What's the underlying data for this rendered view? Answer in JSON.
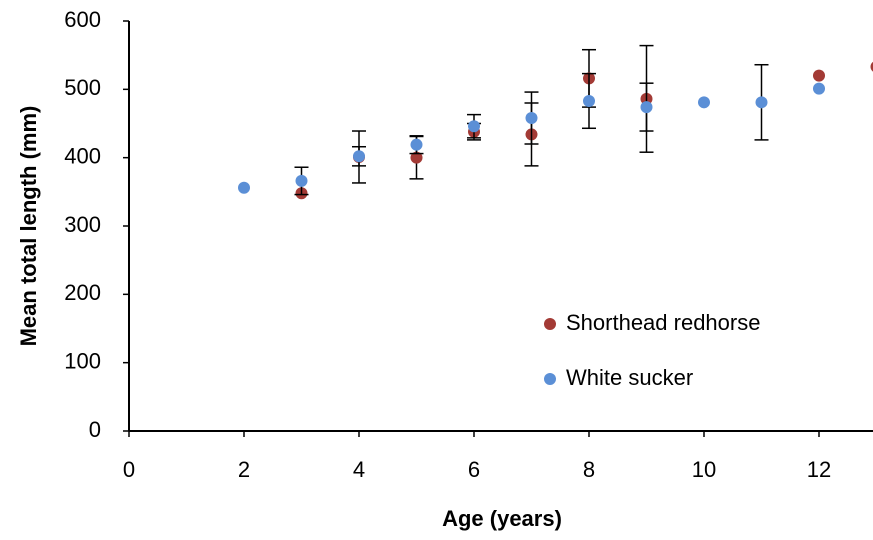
{
  "chart_data": {
    "type": "scatter",
    "x_label": "Age (years)",
    "y_label": "Mean total length (mm)",
    "xlim": [
      0,
      13
    ],
    "xticks": [
      0,
      2,
      4,
      6,
      8,
      10,
      12
    ],
    "ylim": [
      0,
      600
    ],
    "yticks": [
      0,
      100,
      200,
      300,
      400,
      500,
      600
    ],
    "grid": false,
    "legend": "right",
    "series": [
      {
        "name": "Shorthead redhorse",
        "color": "#a33a35",
        "x": [
          3,
          4,
          5,
          6,
          7,
          8,
          9,
          12,
          13
        ],
        "values": [
          348,
          401,
          400,
          438,
          434,
          516,
          486,
          520,
          533
        ],
        "errors": [
          null,
          38,
          31,
          12,
          46,
          42,
          78,
          null,
          null
        ]
      },
      {
        "name": "White sucker",
        "color": "#5b8fd6",
        "x": [
          2,
          3,
          4,
          5,
          6,
          7,
          8,
          9,
          10,
          11,
          12
        ],
        "values": [
          356,
          366,
          402,
          419,
          446,
          458,
          483,
          474,
          481,
          481,
          501
        ],
        "errors": [
          null,
          20,
          14,
          13,
          17,
          38,
          40,
          35,
          null,
          55,
          null
        ]
      }
    ]
  }
}
